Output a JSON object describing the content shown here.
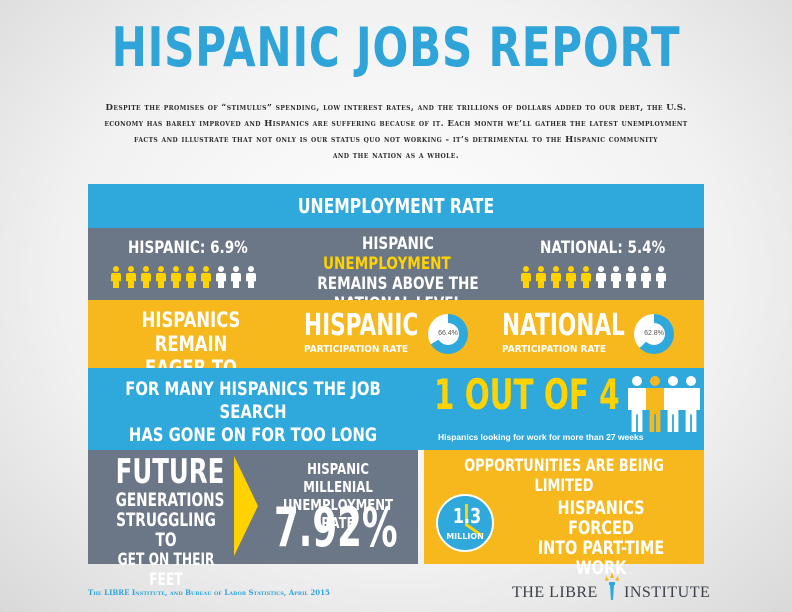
{
  "title": "HISPANIC JOBS REPORT",
  "intro_lines": [
    "Despite the promises of “stimulus” spending, low interest rates, and the trillions of dollars added to our debt, the U.S.",
    "economy has barely improved and Hispanics are suffering because of it. Each month we’ll gather the latest unemployment",
    "facts and illustrate that not only is our status quo not working - it’s detrimental to the Hispanic community",
    "and the nation as a whole."
  ],
  "unemployment": {
    "heading": "UNEMPLOYMENT RATE",
    "hispanic_label": "HISPANIC: 6.9%",
    "hispanic_rate": 6.9,
    "national_label": "NATIONAL: 5.4%",
    "national_rate": 5.4,
    "center_line1_a": "HISPANIC ",
    "center_line1_b": "UNEMPLOYMENT",
    "center_line2": "REMAINS ABOVE THE",
    "center_line3": "NATIONAL LEVEL"
  },
  "participation": {
    "headline_line1": "HISPANICS REMAIN",
    "headline_line2": "EAGER TO WORK",
    "hispanic_title": "HISPANIC",
    "hispanic_sub": "PARTICIPATION RATE",
    "hispanic_value": "66.4%",
    "hispanic_pct": 66.4,
    "national_title": "NATIONAL",
    "national_sub": "PARTICIPATION RATE",
    "national_value": "62.8%",
    "national_pct": 62.8
  },
  "job_search": {
    "line1": "FOR MANY HISPANICS THE JOB SEARCH",
    "line2": "HAS GONE ON FOR TOO LONG",
    "big": "1 OUT OF 4",
    "caption": "Hispanics looking for work for more than 27 weeks"
  },
  "millenial": {
    "future_1": "FUTURE",
    "future_2": "GENERATIONS",
    "future_3": "STRUGGLING TO",
    "future_4": "GET ON THEIR FEET",
    "label_1": "HISPANIC MILLENIAL",
    "label_2": "UNEMPLOYMENT RATE",
    "value": "7.92%"
  },
  "opportunities": {
    "heading": "OPPORTUNITIES ARE BEING LIMITED",
    "number": "1.3",
    "unit": "MILLION",
    "line1": "HISPANICS FORCED",
    "line2": "INTO PART-TIME WORK"
  },
  "footer": {
    "source": "The LIBRE Institute, and Bureau of Labor Statistics, April 2015",
    "logo_left": "THE LIBRE",
    "logo_right": "INSTITUTE"
  },
  "colors": {
    "blue": "#2fa8dc",
    "gray": "#6b7686",
    "gold": "#f6b81c",
    "yellow": "#ffd200"
  }
}
